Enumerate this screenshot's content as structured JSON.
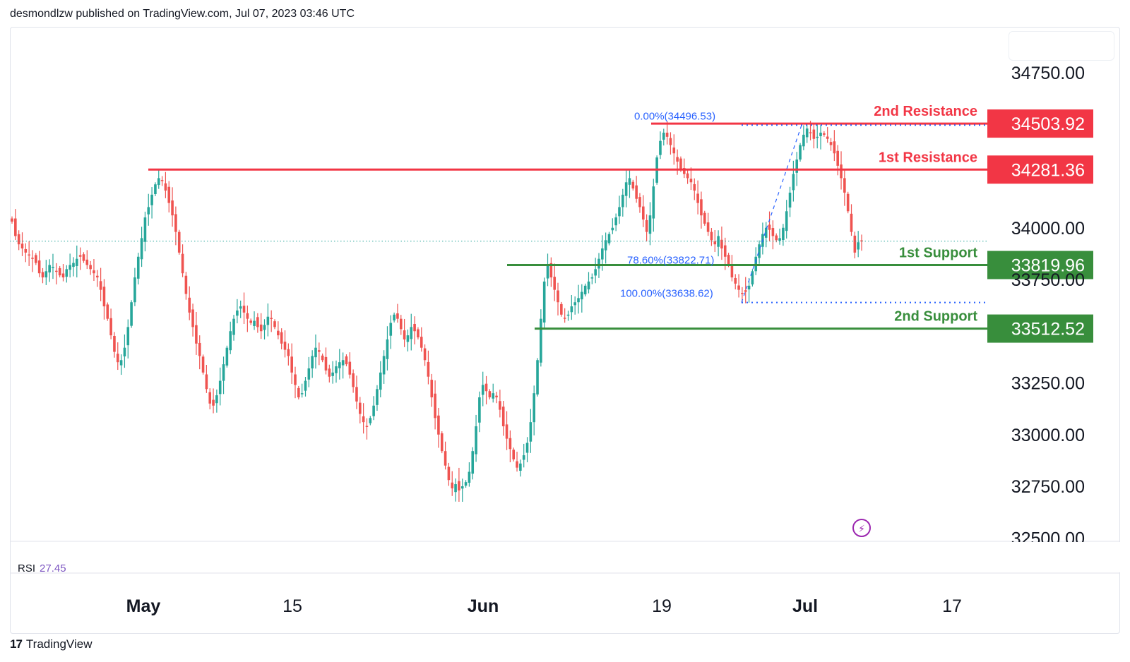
{
  "header": {
    "published_text": "desmondlzw published on TradingView.com, Jul 07, 2023 03:46 UTC"
  },
  "indicator": {
    "name": "RSI",
    "value": "27.45"
  },
  "footer": {
    "brand": "TradingView",
    "logo_text": "17"
  },
  "colors": {
    "up": "#26a69a",
    "down": "#ef5350",
    "resistance": "#f23645",
    "support": "#388e3c",
    "fib": "#2962ff"
  },
  "chart_data": {
    "type": "candlestick",
    "title": "",
    "x_axis": {
      "ticks": [
        "May",
        "15",
        "Jun",
        "19",
        "Jul",
        "17"
      ],
      "bold_ticks": [
        "May",
        "Jun",
        "Jul"
      ]
    },
    "y_axis": {
      "ticks": [
        "34750.00",
        "34000.00",
        "33750.00",
        "33250.00",
        "33000.00",
        "32750.00",
        "32500.00"
      ],
      "range": [
        32450,
        35000
      ]
    },
    "levels": [
      {
        "label": "2nd Resistance",
        "value": 34503.92,
        "price_label": "34503.92",
        "kind": "resistance"
      },
      {
        "label": "1st Resistance",
        "value": 34281.36,
        "price_label": "34281.36",
        "kind": "resistance"
      },
      {
        "label": "1st Support",
        "value": 33819.96,
        "price_label": "33819.96",
        "kind": "support"
      },
      {
        "label": "2nd Support",
        "value": 33512.52,
        "price_label": "33512.52",
        "kind": "support"
      }
    ],
    "fibonacci": [
      {
        "label": "0.00%(34496.53)",
        "value": 34496.53
      },
      {
        "label": "78.60%(33822.71)",
        "value": 33822.71
      },
      {
        "label": "100.00%(33638.62)",
        "value": 33638.62
      }
    ],
    "last_price": 33935,
    "close_series": [
      34030,
      33960,
      33920,
      33900,
      33880,
      33870,
      33850,
      33830,
      33780,
      33760,
      33790,
      33820,
      33810,
      33790,
      33770,
      33760,
      33800,
      33820,
      33830,
      33850,
      33860,
      33840,
      33820,
      33800,
      33780,
      33760,
      33700,
      33620,
      33560,
      33480,
      33400,
      33350,
      33360,
      33420,
      33520,
      33640,
      33760,
      33860,
      33950,
      34050,
      34100,
      34160,
      34210,
      34240,
      34230,
      34180,
      34120,
      34060,
      33980,
      33880,
      33780,
      33680,
      33590,
      33520,
      33440,
      33380,
      33300,
      33220,
      33150,
      33140,
      33190,
      33260,
      33340,
      33420,
      33500,
      33560,
      33600,
      33620,
      33590,
      33560,
      33540,
      33550,
      33520,
      33500,
      33530,
      33570,
      33560,
      33520,
      33480,
      33440,
      33410,
      33380,
      33300,
      33240,
      33180,
      33200,
      33260,
      33320,
      33380,
      33420,
      33400,
      33360,
      33310,
      33280,
      33300,
      33330,
      33350,
      33360,
      33340,
      33290,
      33230,
      33160,
      33100,
      33060,
      33040,
      33080,
      33140,
      33220,
      33300,
      33380,
      33460,
      33540,
      33580,
      33560,
      33510,
      33460,
      33480,
      33520,
      33500,
      33470,
      33420,
      33360,
      33280,
      33180,
      33080,
      33000,
      32920,
      32850,
      32780,
      32740,
      32760,
      32730,
      32750,
      32770,
      32820,
      32920,
      33040,
      33180,
      33240,
      33210,
      33180,
      33200,
      33180,
      33120,
      33040,
      32980,
      32930,
      32880,
      32840,
      32860,
      32900,
      32960,
      33060,
      33200,
      33360,
      33560,
      33740,
      33820,
      33760,
      33700,
      33640,
      33580,
      33560,
      33580,
      33620,
      33640,
      33660,
      33690,
      33720,
      33740,
      33760,
      33800,
      33850,
      33900,
      33940,
      33970,
      34000,
      34050,
      34100,
      34160,
      34220,
      34240,
      34190,
      34140,
      34100,
      34040,
      33980,
      34060,
      34200,
      34340,
      34420,
      34460,
      34440,
      34400,
      34360,
      34320,
      34280,
      34260,
      34240,
      34220,
      34180,
      34120,
      34060,
      34020,
      33980,
      33940,
      33920,
      33960,
      33900,
      33860,
      33820,
      33760,
      33730,
      33700,
      33680,
      33690,
      33720,
      33790,
      33860,
      33920,
      33970,
      34000,
      33990,
      33960,
      33940,
      33950,
      34000,
      34080,
      34170,
      34260,
      34330,
      34400,
      34450,
      34480,
      34460,
      34430,
      34440,
      34460,
      34450,
      34430,
      34400,
      34360,
      34300,
      34240,
      34170,
      34080,
      33980,
      33880,
      33930,
      33935
    ]
  }
}
